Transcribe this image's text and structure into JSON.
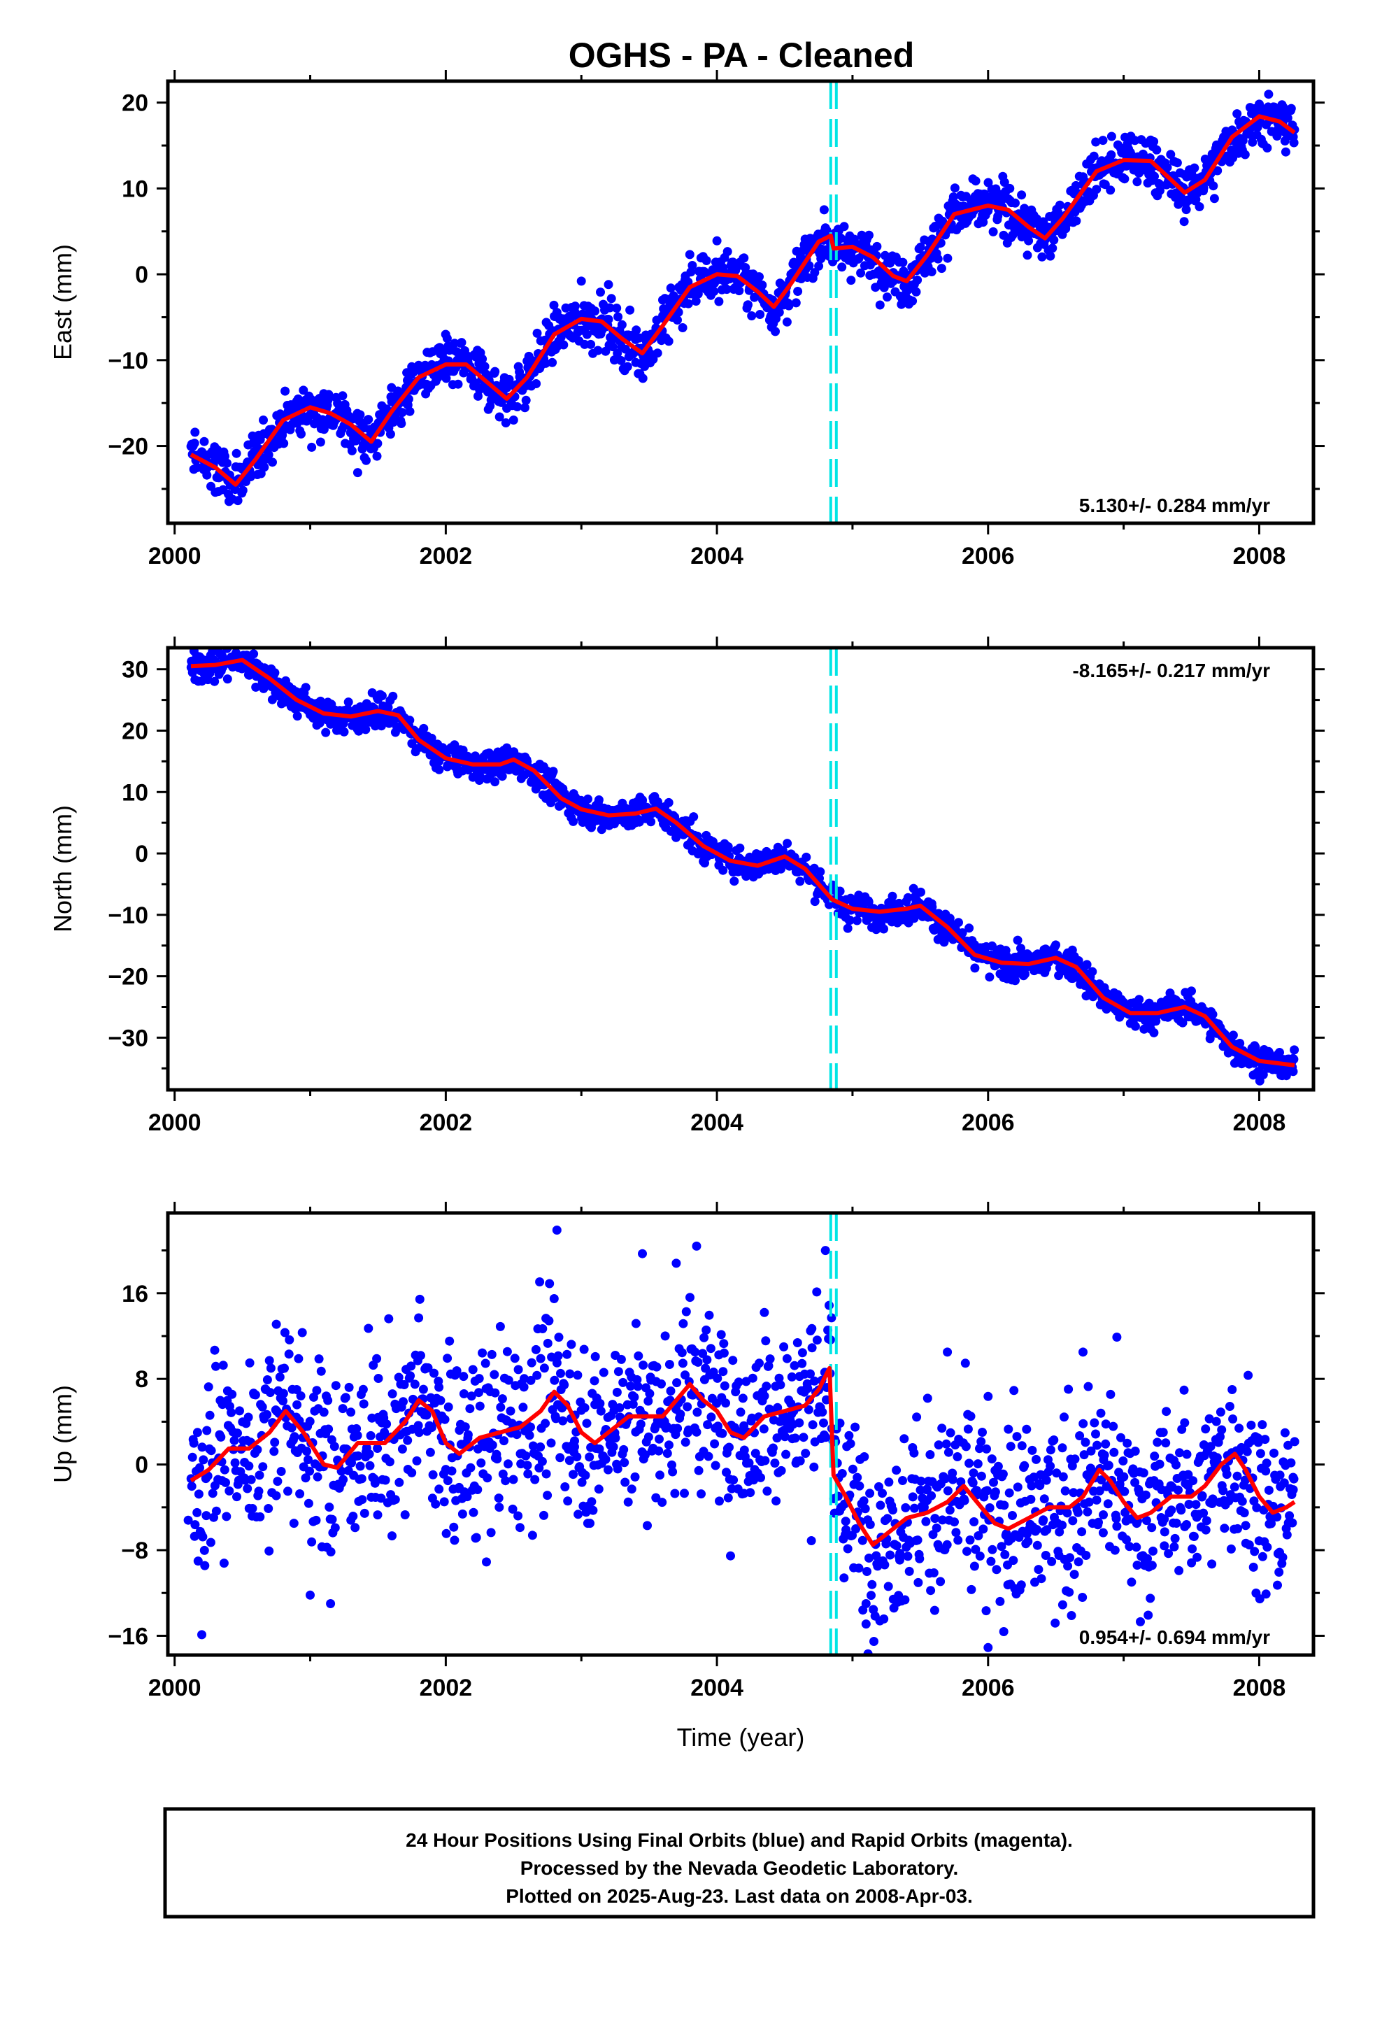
{
  "title": "OGHS  - PA - Cleaned",
  "colors": {
    "final_orbits": "#0000ff",
    "fit_line": "#ff0000",
    "offset_marker": "#00e5e5",
    "frame": "#000000"
  },
  "caption": {
    "line1": "24 Hour Positions Using Final Orbits (blue) and Rapid Orbits (magenta).",
    "line2": "Processed by the Nevada Geodetic Laboratory.",
    "line3": "Plotted on 2025-Aug-23. Last data on 2008-Apr-03."
  },
  "chart_data": [
    {
      "type": "scatter",
      "panel": "east",
      "ylabel": "East (mm)",
      "xlabel": "",
      "xlim": [
        1999.95,
        2008.4
      ],
      "ylim": [
        -29,
        22.5
      ],
      "xticks": [
        2000,
        2002,
        2004,
        2006,
        2008
      ],
      "xtick_labels": [
        "2000",
        "2002",
        "2004",
        "2006",
        "2008"
      ],
      "yticks": [
        -20,
        -10,
        0,
        10,
        20
      ],
      "ytick_labels": [
        "−20",
        "−10",
        "0",
        "10",
        "20"
      ],
      "rate": "5.130+/- 0.284 mm/yr",
      "rate_position": "bottom-right",
      "offset_epoch": 2004.86,
      "data_start": 2000.12,
      "data_end": 2008.26,
      "fit_line": [
        [
          2000.12,
          -21
        ],
        [
          2000.3,
          -22.5
        ],
        [
          2000.45,
          -24.5
        ],
        [
          2000.6,
          -21.5
        ],
        [
          2000.8,
          -17
        ],
        [
          2001.0,
          -15.5
        ],
        [
          2001.15,
          -16.2
        ],
        [
          2001.3,
          -17.5
        ],
        [
          2001.45,
          -19.5
        ],
        [
          2001.6,
          -16
        ],
        [
          2001.8,
          -12
        ],
        [
          2002.0,
          -10.5
        ],
        [
          2002.15,
          -10.5
        ],
        [
          2002.3,
          -12.5
        ],
        [
          2002.45,
          -14.5
        ],
        [
          2002.6,
          -12
        ],
        [
          2002.8,
          -7
        ],
        [
          2003.0,
          -5.2
        ],
        [
          2003.15,
          -5.5
        ],
        [
          2003.3,
          -7.5
        ],
        [
          2003.45,
          -9.2
        ],
        [
          2003.6,
          -6
        ],
        [
          2003.8,
          -1.5
        ],
        [
          2004.0,
          0
        ],
        [
          2004.15,
          -0.2
        ],
        [
          2004.3,
          -2
        ],
        [
          2004.42,
          -3.8
        ],
        [
          2004.55,
          -1
        ],
        [
          2004.75,
          3.8
        ],
        [
          2004.84,
          4.5
        ],
        [
          2004.86,
          3
        ],
        [
          2005.0,
          3.2
        ],
        [
          2005.15,
          2
        ],
        [
          2005.3,
          -0.2
        ],
        [
          2005.4,
          -0.8
        ],
        [
          2005.55,
          2.2
        ],
        [
          2005.75,
          7
        ],
        [
          2006.0,
          8
        ],
        [
          2006.15,
          7.5
        ],
        [
          2006.3,
          5.5
        ],
        [
          2006.42,
          4.2
        ],
        [
          2006.55,
          6.5
        ],
        [
          2006.8,
          12
        ],
        [
          2007.0,
          13.3
        ],
        [
          2007.2,
          13.2
        ],
        [
          2007.35,
          11
        ],
        [
          2007.45,
          9.5
        ],
        [
          2007.6,
          11
        ],
        [
          2007.8,
          16
        ],
        [
          2008.0,
          18.4
        ],
        [
          2008.15,
          17.8
        ],
        [
          2008.26,
          16.5
        ]
      ],
      "points": [
        [
          2000.15,
          -18.4
        ],
        [
          2000.3,
          -25.4
        ],
        [
          2000.5,
          -22.7
        ],
        [
          2000.7,
          -18.1
        ],
        [
          2000.9,
          -14.8
        ],
        [
          2001.1,
          -13.9
        ],
        [
          2001.35,
          -23.1
        ],
        [
          2001.6,
          -13.2
        ],
        [
          2001.8,
          -10.6
        ],
        [
          2002.05,
          -8.8
        ],
        [
          2002.25,
          -13.3
        ],
        [
          2002.45,
          -15.6
        ],
        [
          2002.6,
          -10.1
        ],
        [
          2002.8,
          -4.9
        ],
        [
          2003.0,
          -0.8
        ],
        [
          2003.2,
          -1.2
        ],
        [
          2003.4,
          -7.6
        ],
        [
          2003.6,
          -3.0
        ],
        [
          2003.8,
          2.3
        ],
        [
          2004.0,
          3.9
        ],
        [
          2004.2,
          1.9
        ],
        [
          2004.4,
          -4.8
        ],
        [
          2004.6,
          -0.4
        ],
        [
          2004.8,
          5.4
        ],
        [
          2005.0,
          2.8
        ],
        [
          2005.3,
          -0.8
        ],
        [
          2005.6,
          3.4
        ],
        [
          2005.8,
          9.2
        ],
        [
          2006.0,
          7.4
        ],
        [
          2006.2,
          8.3
        ],
        [
          2006.4,
          3.8
        ],
        [
          2006.6,
          6.9
        ],
        [
          2006.8,
          12.4
        ],
        [
          2007.0,
          13.0
        ],
        [
          2007.2,
          11.9
        ],
        [
          2007.4,
          9.5
        ],
        [
          2007.6,
          11.6
        ],
        [
          2007.8,
          16.8
        ],
        [
          2008.0,
          17.6
        ],
        [
          2008.2,
          18.4
        ]
      ]
    },
    {
      "type": "scatter",
      "panel": "north",
      "ylabel": "North (mm)",
      "xlabel": "",
      "xlim": [
        1999.95,
        2008.4
      ],
      "ylim": [
        -38.5,
        33.5
      ],
      "xticks": [
        2000,
        2002,
        2004,
        2006,
        2008
      ],
      "xtick_labels": [
        "2000",
        "2002",
        "2004",
        "2006",
        "2008"
      ],
      "yticks": [
        -30,
        -20,
        -10,
        0,
        10,
        20,
        30
      ],
      "ytick_labels": [
        "−30",
        "−20",
        "−10",
        "0",
        "10",
        "20",
        "30"
      ],
      "rate": "-8.165+/- 0.217 mm/yr",
      "rate_position": "top-right",
      "offset_epoch": 2004.86,
      "data_start": 2000.12,
      "data_end": 2008.26,
      "fit_line": [
        [
          2000.12,
          30.5
        ],
        [
          2000.3,
          30.7
        ],
        [
          2000.5,
          31.5
        ],
        [
          2000.7,
          28.5
        ],
        [
          2000.9,
          25
        ],
        [
          2001.1,
          22.8
        ],
        [
          2001.3,
          22.3
        ],
        [
          2001.5,
          23.2
        ],
        [
          2001.65,
          22.5
        ],
        [
          2001.8,
          18.5
        ],
        [
          2002.0,
          15.5
        ],
        [
          2002.2,
          14.5
        ],
        [
          2002.4,
          14.5
        ],
        [
          2002.5,
          15.3
        ],
        [
          2002.65,
          13.5
        ],
        [
          2002.85,
          9
        ],
        [
          2003.0,
          7.2
        ],
        [
          2003.2,
          6.2
        ],
        [
          2003.4,
          6.5
        ],
        [
          2003.55,
          7.3
        ],
        [
          2003.7,
          5
        ],
        [
          2003.9,
          1.2
        ],
        [
          2004.1,
          -1.2
        ],
        [
          2004.3,
          -2
        ],
        [
          2004.5,
          -0.5
        ],
        [
          2004.65,
          -2.5
        ],
        [
          2004.85,
          -7.5
        ],
        [
          2005.0,
          -9
        ],
        [
          2005.2,
          -9.5
        ],
        [
          2005.4,
          -9
        ],
        [
          2005.5,
          -8.5
        ],
        [
          2005.7,
          -12
        ],
        [
          2005.9,
          -16.5
        ],
        [
          2006.1,
          -17.8
        ],
        [
          2006.3,
          -18
        ],
        [
          2006.5,
          -17
        ],
        [
          2006.65,
          -18.5
        ],
        [
          2006.85,
          -23.5
        ],
        [
          2007.05,
          -26
        ],
        [
          2007.25,
          -26
        ],
        [
          2007.45,
          -25
        ],
        [
          2007.6,
          -26.5
        ],
        [
          2007.8,
          -31.5
        ],
        [
          2008.0,
          -33.8
        ],
        [
          2008.26,
          -34.5
        ]
      ],
      "points": [
        [
          2000.15,
          28.3
        ],
        [
          2000.35,
          32.2
        ],
        [
          2000.6,
          31.0
        ],
        [
          2000.8,
          27.4
        ],
        [
          2001.0,
          22.6
        ],
        [
          2001.25,
          19.8
        ],
        [
          2001.5,
          25.1
        ],
        [
          2001.75,
          17.9
        ],
        [
          2001.95,
          15.0
        ],
        [
          2002.2,
          12.4
        ],
        [
          2002.45,
          17.2
        ],
        [
          2002.7,
          12.0
        ],
        [
          2002.9,
          8.3
        ],
        [
          2003.15,
          3.9
        ],
        [
          2003.45,
          8.7
        ],
        [
          2003.7,
          5.1
        ],
        [
          2003.9,
          -1.3
        ],
        [
          2004.15,
          -1.3
        ],
        [
          2004.45,
          1.0
        ],
        [
          2004.7,
          -4.0
        ],
        [
          2004.9,
          -8.0
        ],
        [
          2005.1,
          -9.8
        ],
        [
          2005.45,
          -5.7
        ],
        [
          2005.7,
          -13.5
        ],
        [
          2005.9,
          -16.8
        ],
        [
          2006.2,
          -20.7
        ],
        [
          2006.5,
          -16.6
        ],
        [
          2006.75,
          -20.6
        ],
        [
          2006.95,
          -25.7
        ],
        [
          2007.2,
          -28.6
        ],
        [
          2007.5,
          -22.4
        ],
        [
          2007.7,
          -28.7
        ],
        [
          2007.9,
          -33.6
        ],
        [
          2008.1,
          -35.2
        ],
        [
          2008.25,
          -33.4
        ]
      ]
    },
    {
      "type": "scatter",
      "panel": "up",
      "ylabel": "Up (mm)",
      "xlabel": "Time (year)",
      "xlim": [
        1999.95,
        2008.4
      ],
      "ylim": [
        -17.8,
        23.5
      ],
      "xticks": [
        2000,
        2002,
        2004,
        2006,
        2008
      ],
      "xtick_labels": [
        "2000",
        "2002",
        "2004",
        "2006",
        "2008"
      ],
      "yticks": [
        -16,
        -8,
        0,
        8,
        16
      ],
      "ytick_labels": [
        "−16",
        "−8",
        "0",
        "8",
        "16"
      ],
      "rate": "0.954+/- 0.694 mm/yr",
      "rate_position": "bottom-right",
      "offset_epoch": 2004.86,
      "data_start": 2000.12,
      "data_end": 2008.26,
      "fit_line": [
        [
          2000.12,
          -1.5
        ],
        [
          2000.25,
          -0.5
        ],
        [
          2000.4,
          1.5
        ],
        [
          2000.55,
          1.5
        ],
        [
          2000.7,
          3
        ],
        [
          2000.82,
          5
        ],
        [
          2000.95,
          3
        ],
        [
          2001.1,
          0
        ],
        [
          2001.2,
          -0.3
        ],
        [
          2001.35,
          2
        ],
        [
          2001.55,
          2
        ],
        [
          2001.7,
          4
        ],
        [
          2001.8,
          6
        ],
        [
          2001.9,
          5
        ],
        [
          2002.0,
          2
        ],
        [
          2002.1,
          1
        ],
        [
          2002.25,
          2.5
        ],
        [
          2002.4,
          3
        ],
        [
          2002.55,
          3.5
        ],
        [
          2002.7,
          5
        ],
        [
          2002.8,
          6.8
        ],
        [
          2002.9,
          5.5
        ],
        [
          2003.0,
          3
        ],
        [
          2003.1,
          2
        ],
        [
          2003.2,
          3
        ],
        [
          2003.35,
          4.5
        ],
        [
          2003.5,
          4.5
        ],
        [
          2003.6,
          4.5
        ],
        [
          2003.8,
          7.5
        ],
        [
          2003.9,
          6
        ],
        [
          2004.0,
          5
        ],
        [
          2004.1,
          3
        ],
        [
          2004.2,
          2.5
        ],
        [
          2004.35,
          4.5
        ],
        [
          2004.5,
          5
        ],
        [
          2004.65,
          5.5
        ],
        [
          2004.75,
          7
        ],
        [
          2004.83,
          9
        ],
        [
          2004.86,
          -1
        ],
        [
          2004.95,
          -3
        ],
        [
          2005.05,
          -5.5
        ],
        [
          2005.15,
          -7.5
        ],
        [
          2005.25,
          -6.5
        ],
        [
          2005.4,
          -5
        ],
        [
          2005.55,
          -4.5
        ],
        [
          2005.7,
          -3.5
        ],
        [
          2005.82,
          -2
        ],
        [
          2005.95,
          -4
        ],
        [
          2006.05,
          -5.5
        ],
        [
          2006.15,
          -6
        ],
        [
          2006.3,
          -5
        ],
        [
          2006.45,
          -4
        ],
        [
          2006.6,
          -4
        ],
        [
          2006.7,
          -3
        ],
        [
          2006.82,
          -0.5
        ],
        [
          2006.9,
          -1.5
        ],
        [
          2007.0,
          -3.5
        ],
        [
          2007.1,
          -5
        ],
        [
          2007.2,
          -4.5
        ],
        [
          2007.35,
          -3
        ],
        [
          2007.5,
          -3
        ],
        [
          2007.6,
          -2
        ],
        [
          2007.72,
          0
        ],
        [
          2007.82,
          1
        ],
        [
          2007.9,
          -0.5
        ],
        [
          2008.0,
          -3
        ],
        [
          2008.1,
          -4.5
        ],
        [
          2008.2,
          -4
        ],
        [
          2008.26,
          -3.5
        ]
      ],
      "points": [
        [
          2000.1,
          -5.2
        ],
        [
          2000.2,
          -15.9
        ],
        [
          2000.35,
          -1.5
        ],
        [
          2000.55,
          -4.1
        ],
        [
          2000.75,
          13.1
        ],
        [
          2000.9,
          7.0
        ],
        [
          2001.0,
          -12.2
        ],
        [
          2001.15,
          -13.0
        ],
        [
          2001.3,
          -5.2
        ],
        [
          2001.5,
          4.4
        ],
        [
          2001.7,
          -4.7
        ],
        [
          2001.8,
          13.7
        ],
        [
          2001.95,
          -2.3
        ],
        [
          2002.15,
          2.0
        ],
        [
          2002.3,
          -9.1
        ],
        [
          2002.55,
          1.0
        ],
        [
          2002.7,
          9.9
        ],
        [
          2002.82,
          21.9
        ],
        [
          2002.95,
          2.2
        ],
        [
          2003.1,
          5.6
        ],
        [
          2003.25,
          10.2
        ],
        [
          2003.45,
          19.7
        ],
        [
          2003.55,
          -3.1
        ],
        [
          2003.7,
          18.8
        ],
        [
          2003.85,
          20.4
        ],
        [
          2004.05,
          11.3
        ],
        [
          2004.2,
          -2.7
        ],
        [
          2004.35,
          14.2
        ],
        [
          2004.55,
          4.7
        ],
        [
          2004.7,
          12.7
        ],
        [
          2004.8,
          20.0
        ],
        [
          2004.95,
          -5.3
        ],
        [
          2005.1,
          -13.0
        ],
        [
          2005.35,
          -8.3
        ],
        [
          2005.55,
          -2.3
        ],
        [
          2005.7,
          10.5
        ],
        [
          2005.9,
          -9.5
        ],
        [
          2006.0,
          -17.1
        ],
        [
          2006.15,
          3.3
        ],
        [
          2006.35,
          -4.4
        ],
        [
          2006.55,
          -13.1
        ],
        [
          2006.7,
          10.5
        ],
        [
          2006.85,
          -4.7
        ],
        [
          2006.95,
          11.9
        ],
        [
          2007.1,
          -9.4
        ],
        [
          2007.3,
          -7.6
        ],
        [
          2007.45,
          3.9
        ],
        [
          2007.65,
          -9.3
        ],
        [
          2007.8,
          7.0
        ],
        [
          2007.9,
          -5.7
        ],
        [
          2008.05,
          -12.1
        ],
        [
          2008.15,
          -8.2
        ],
        [
          2008.25,
          -1.2
        ]
      ]
    }
  ]
}
